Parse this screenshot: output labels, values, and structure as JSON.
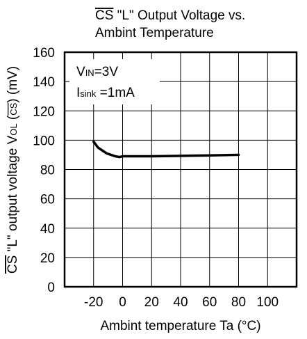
{
  "chart_data": {
    "type": "line",
    "title": {
      "line1_overbar": "CS",
      "line1_rest": "  \"L\" Output Voltage vs.",
      "line2": "Ambint Temperature"
    },
    "xlabel": "Ambint  temperature Ta (°C)",
    "ylabel": {
      "prefix_overbar": "CS",
      "middle": "  \"L\" output voltage V",
      "subscript": "OL",
      "paren_open": " (",
      "paren_overbar": "CS",
      "suffix": ") (mV)"
    },
    "xlim": [
      -40,
      120
    ],
    "ylim": [
      0,
      160
    ],
    "x_ticks": [
      -20,
      0,
      20,
      40,
      60,
      80,
      100
    ],
    "y_ticks": [
      0,
      20,
      40,
      60,
      80,
      100,
      120,
      140,
      160
    ],
    "x_tick_labels": [
      "-20",
      "0",
      "20",
      "40",
      "60",
      "80",
      "100"
    ],
    "y_tick_labels": [
      "0",
      "20",
      "40",
      "60",
      "80",
      "100",
      "120",
      "140",
      "160"
    ],
    "grid": true,
    "conditions": {
      "vin_main": "V",
      "vin_sub": "IN",
      "vin_value": "=3V",
      "isink_main": "I",
      "isink_sub": "sink",
      "isink_value": " =1mA"
    },
    "series": [
      {
        "color": "#000000",
        "x": [
          -20,
          -17,
          -14,
          -11,
          -8,
          -5,
          -2,
          0,
          20,
          40,
          60,
          80
        ],
        "y": [
          99,
          95,
          93,
          91,
          90,
          89,
          88.5,
          89,
          89,
          89.3,
          89.6,
          90
        ]
      }
    ]
  }
}
